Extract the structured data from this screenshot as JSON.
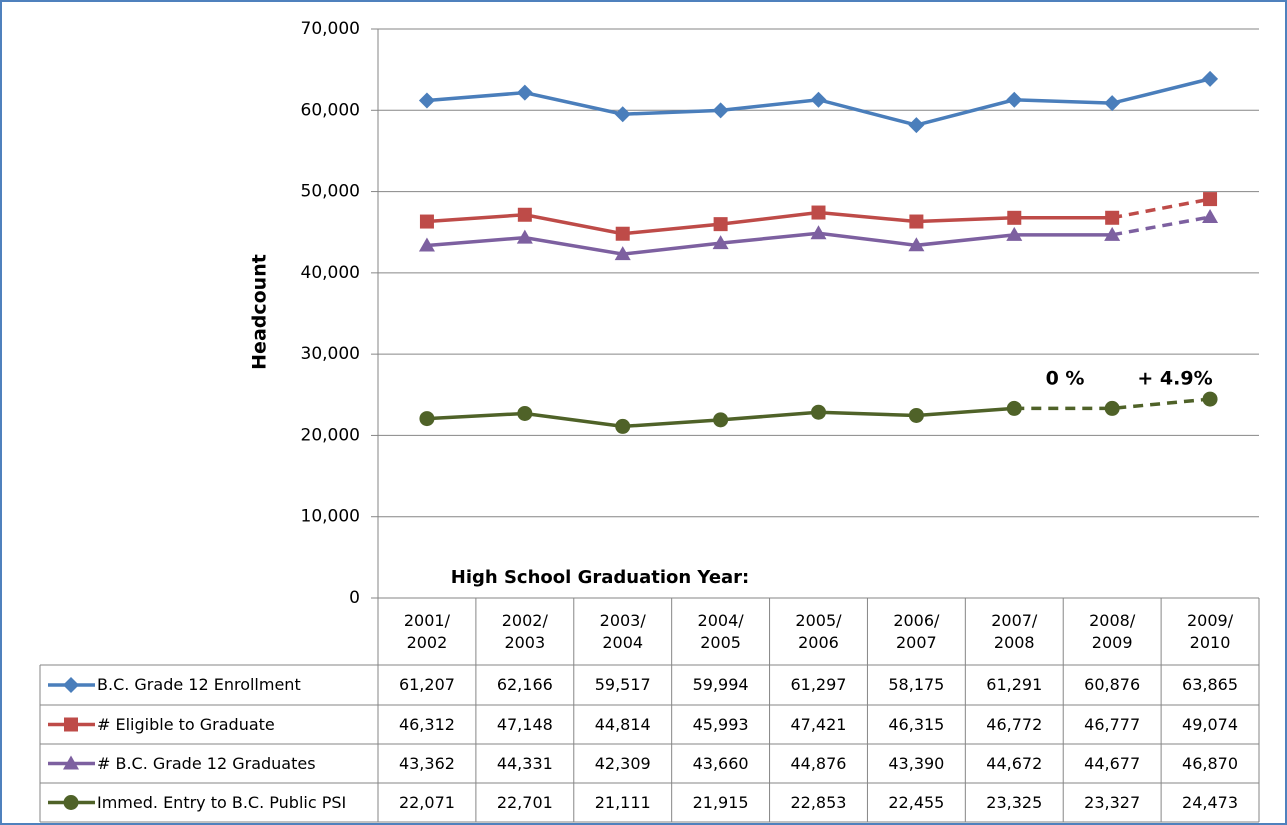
{
  "chart_data": {
    "type": "line",
    "y_label": "Headcount",
    "x_label": "High School Graduation Year:",
    "categories": [
      "2001/\n2002",
      "2002/\n2003",
      "2003/\n2004",
      "2004/\n2005",
      "2005/\n2006",
      "2006/\n2007",
      "2007/\n2008",
      "2008/\n2009",
      "2009/\n2010"
    ],
    "series": [
      {
        "name": "B.C. Grade 12 Enrollment",
        "color": "#4a7ebb",
        "marker": "diamond",
        "values": [
          61207,
          62166,
          59517,
          59994,
          61297,
          58175,
          61291,
          60876,
          63865
        ],
        "value_labels": [
          "61,207",
          "62,166",
          "59,517",
          "59,994",
          "61,297",
          "58,175",
          "61,291",
          "60,876",
          "63,865"
        ]
      },
      {
        "name": "# Eligible to Graduate",
        "color": "#be4b48",
        "marker": "square",
        "dash_from": 7,
        "values": [
          46312,
          47148,
          44814,
          45993,
          47421,
          46315,
          46772,
          46777,
          49074
        ],
        "value_labels": [
          "46,312",
          "47,148",
          "44,814",
          "45,993",
          "47,421",
          "46,315",
          "46,772",
          "46,777",
          "49,074"
        ]
      },
      {
        "name": "# B.C. Grade 12 Graduates",
        "color": "#7d60a0",
        "marker": "triangle",
        "dash_from": 7,
        "values": [
          43362,
          44331,
          42309,
          43660,
          44876,
          43390,
          44672,
          44677,
          46870
        ],
        "value_labels": [
          "43,362",
          "44,331",
          "42,309",
          "43,660",
          "44,876",
          "43,390",
          "44,672",
          "44,677",
          "46,870"
        ]
      },
      {
        "name": "Immed. Entry to B.C. Public PSI",
        "color": "#4f6228",
        "marker": "circle",
        "dash_from": 6,
        "values": [
          22071,
          22701,
          21111,
          21915,
          22853,
          22455,
          23325,
          23327,
          24473
        ],
        "value_labels": [
          "22,071",
          "22,701",
          "21,111",
          "21,915",
          "22,853",
          "22,455",
          "23,325",
          "23,327",
          "24,473"
        ]
      }
    ],
    "annotations": [
      {
        "text": "0 %",
        "color": "#4f6228"
      },
      {
        "text": "+ 4.9%",
        "color": "#4f6228"
      }
    ],
    "ylim": [
      0,
      70000
    ],
    "yticks": [
      0,
      {
        "value": 10000,
        "label": "10,000"
      },
      {
        "value": 20000,
        "label": "20,000"
      },
      {
        "value": 30000,
        "label": "30,000"
      },
      {
        "value": 40000,
        "label": "40,000"
      },
      {
        "value": 50000,
        "label": "50,000"
      },
      {
        "value": 60000,
        "label": "60,000"
      },
      {
        "value": 70000,
        "label": "70,000"
      }
    ],
    "grid": true
  }
}
